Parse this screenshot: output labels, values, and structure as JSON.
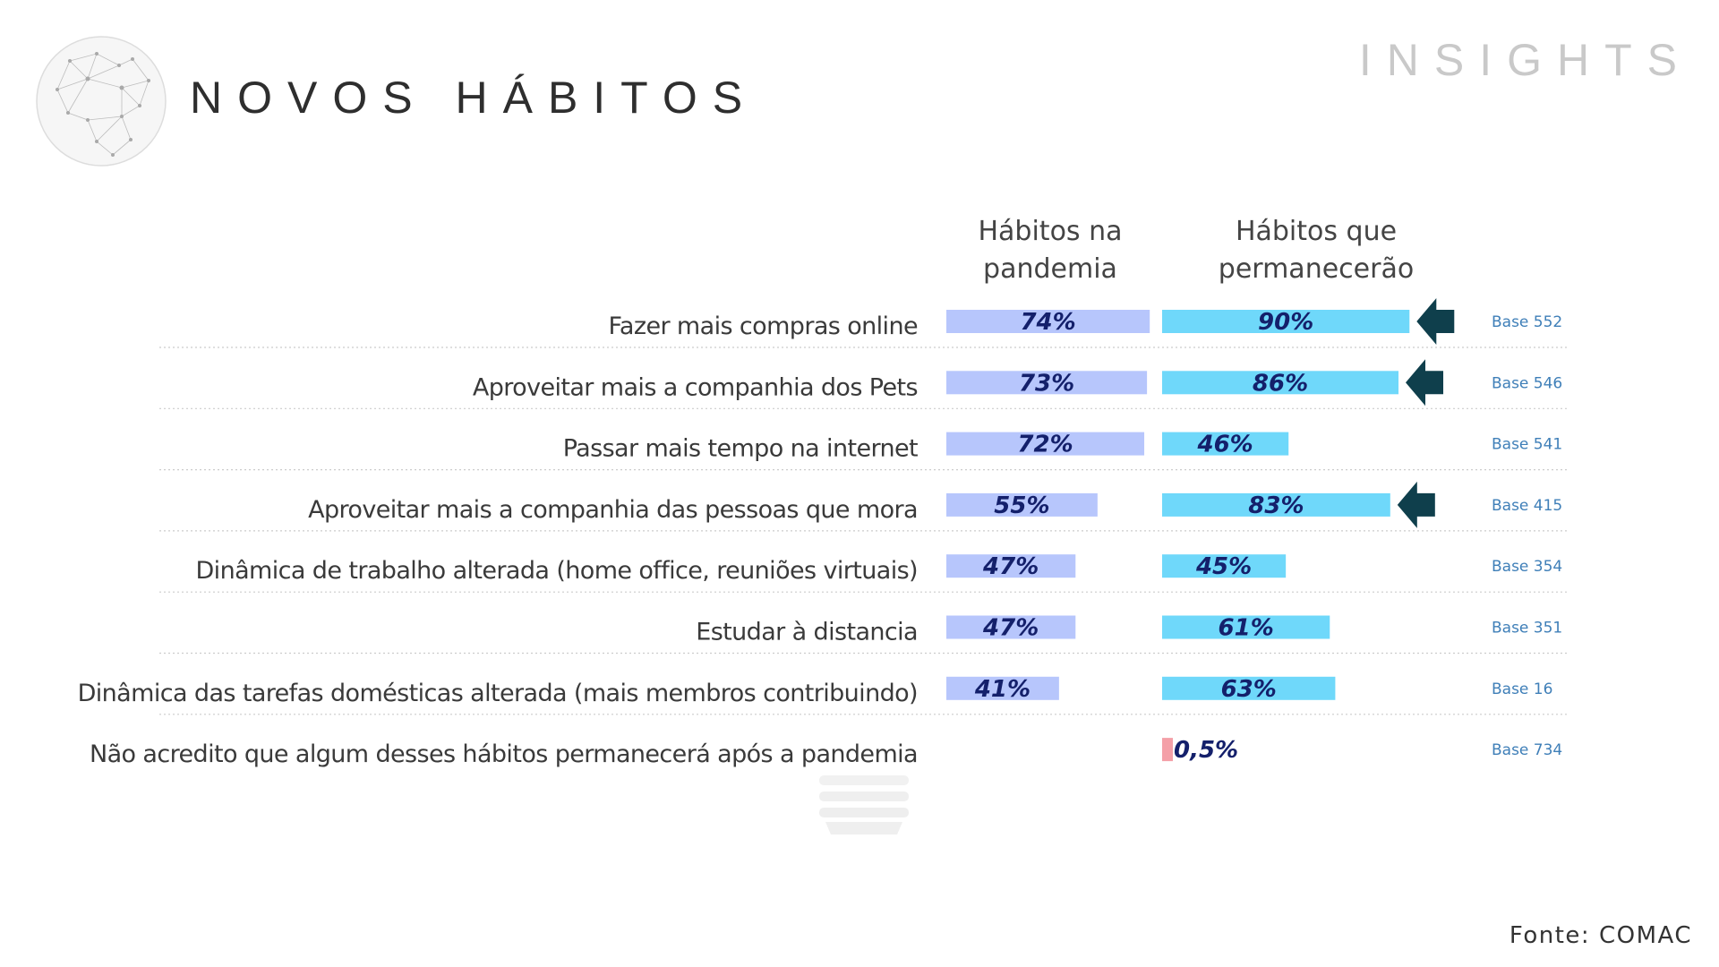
{
  "page": {
    "title": "NOVOS HÁBITOS",
    "corner_label": "INSIGHTS",
    "source": "Fonte: COMAC"
  },
  "colors": {
    "pandemia_bar": "#b7c6fc",
    "permanecerao_bar": "#6fd8fa",
    "negative_bar": "#f4a0a8",
    "value_text": "#14206b",
    "base_text": "#3f7fb8",
    "arrow": "#0f3f4c",
    "row_label": "#3a3a3a"
  },
  "chart_data": {
    "type": "bar",
    "orientation": "horizontal",
    "value_unit": "%",
    "series": [
      {
        "name": "Hábitos na\npandemia",
        "key": "pandemia"
      },
      {
        "name": "Hábitos que\npermanecerão",
        "key": "permanecerao"
      }
    ],
    "categories": [
      {
        "label": "Fazer mais compras online",
        "pandemia": 74,
        "pandemia_label": "74%",
        "permanecerao": 90,
        "permanecerao_label": "90%",
        "base": "Base 552",
        "highlight": true
      },
      {
        "label": "Aproveitar mais a companhia dos Pets",
        "pandemia": 73,
        "pandemia_label": "73%",
        "permanecerao": 86,
        "permanecerao_label": "86%",
        "base": "Base 546",
        "highlight": true
      },
      {
        "label": "Passar mais tempo na internet",
        "pandemia": 72,
        "pandemia_label": "72%",
        "permanecerao": 46,
        "permanecerao_label": "46%",
        "base": "Base 541",
        "highlight": false
      },
      {
        "label": "Aproveitar mais a companhia das pessoas que mora",
        "pandemia": 55,
        "pandemia_label": "55%",
        "permanecerao": 83,
        "permanecerao_label": "83%",
        "base": "Base 415",
        "highlight": true
      },
      {
        "label": "Dinâmica de trabalho alterada (home office, reuniões virtuais)",
        "pandemia": 47,
        "pandemia_label": "47%",
        "permanecerao": 45,
        "permanecerao_label": "45%",
        "base": "Base 354",
        "highlight": false
      },
      {
        "label": "Estudar à distancia",
        "pandemia": 47,
        "pandemia_label": "47%",
        "permanecerao": 61,
        "permanecerao_label": "61%",
        "base": "Base 351",
        "highlight": false
      },
      {
        "label": "Dinâmica das tarefas domésticas alterada (mais membros contribuindo)",
        "pandemia": 41,
        "pandemia_label": "41%",
        "permanecerao": 63,
        "permanecerao_label": "63%",
        "base": "Base 16",
        "highlight": false
      },
      {
        "label": "Não acredito que algum desses hábitos permanecerá após a pandemia",
        "pandemia": null,
        "pandemia_label": "",
        "permanecerao": 0.5,
        "permanecerao_label": "0,5%",
        "base": "Base 734",
        "highlight": false
      }
    ],
    "grid": false,
    "row_separators": "dotted"
  }
}
